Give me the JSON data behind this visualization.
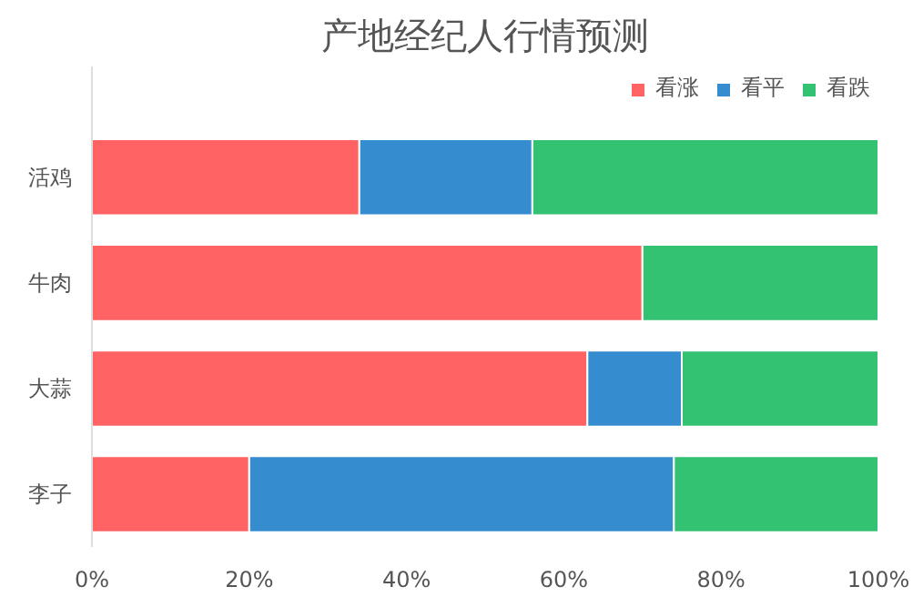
{
  "chart_data": {
    "type": "bar",
    "title": "产地经纪人行情预测",
    "orientation": "horizontal",
    "stacked": true,
    "categories": [
      "活鸡",
      "牛肉",
      "大蒜",
      "李子"
    ],
    "series": [
      {
        "name": "看涨",
        "color": "#ff6363",
        "values": [
          34,
          70,
          63,
          20
        ]
      },
      {
        "name": "看平",
        "color": "#358ccf",
        "values": [
          22,
          0,
          12,
          54
        ]
      },
      {
        "name": "看跌",
        "color": "#33c172",
        "values": [
          44,
          30,
          25,
          26
        ]
      }
    ],
    "xlim": [
      0,
      100
    ],
    "xticks": [
      {
        "value": 0,
        "label": "0%"
      },
      {
        "value": 20,
        "label": "20%"
      },
      {
        "value": 40,
        "label": "40%"
      },
      {
        "value": 60,
        "label": "60%"
      },
      {
        "value": 80,
        "label": "80%"
      },
      {
        "value": 100,
        "label": "100%"
      }
    ],
    "legend": "top right",
    "grid": false
  }
}
